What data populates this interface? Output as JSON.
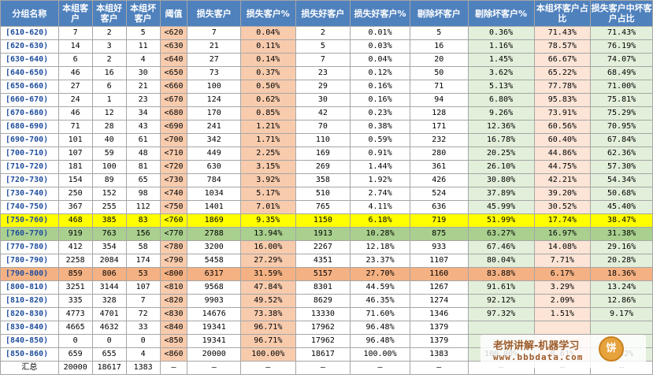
{
  "headers": [
    "分组名称",
    "本组客户",
    "本组好客户",
    "本组坏客户",
    "阈值",
    "损失客户",
    "损失客户%",
    "损失好客户",
    "损失好客户%",
    "剔除坏客户",
    "剔除坏客户%",
    "本组坏客户占比",
    "损失客户中坏客户占比"
  ],
  "rows": [
    [
      "[610-620)",
      "7",
      "2",
      "5",
      "<620",
      "7",
      "0.04%",
      "2",
      "0.01%",
      "5",
      "0.36%",
      "71.43%",
      "71.43%"
    ],
    [
      "[620-630)",
      "14",
      "3",
      "11",
      "<630",
      "21",
      "0.11%",
      "5",
      "0.03%",
      "16",
      "1.16%",
      "78.57%",
      "76.19%"
    ],
    [
      "[630-640)",
      "6",
      "2",
      "4",
      "<640",
      "27",
      "0.14%",
      "7",
      "0.04%",
      "20",
      "1.45%",
      "66.67%",
      "74.07%"
    ],
    [
      "[640-650)",
      "46",
      "16",
      "30",
      "<650",
      "73",
      "0.37%",
      "23",
      "0.12%",
      "50",
      "3.62%",
      "65.22%",
      "68.49%"
    ],
    [
      "[650-660)",
      "27",
      "6",
      "21",
      "<660",
      "100",
      "0.50%",
      "29",
      "0.16%",
      "71",
      "5.13%",
      "77.78%",
      "71.00%"
    ],
    [
      "[660-670)",
      "24",
      "1",
      "23",
      "<670",
      "124",
      "0.62%",
      "30",
      "0.16%",
      "94",
      "6.80%",
      "95.83%",
      "75.81%"
    ],
    [
      "[670-680)",
      "46",
      "12",
      "34",
      "<680",
      "170",
      "0.85%",
      "42",
      "0.23%",
      "128",
      "9.26%",
      "73.91%",
      "75.29%"
    ],
    [
      "[680-690)",
      "71",
      "28",
      "43",
      "<690",
      "241",
      "1.21%",
      "70",
      "0.38%",
      "171",
      "12.36%",
      "60.56%",
      "70.95%"
    ],
    [
      "[690-700)",
      "101",
      "40",
      "61",
      "<700",
      "342",
      "1.71%",
      "110",
      "0.59%",
      "232",
      "16.78%",
      "60.40%",
      "67.84%"
    ],
    [
      "[700-710)",
      "107",
      "59",
      "48",
      "<710",
      "449",
      "2.25%",
      "169",
      "0.91%",
      "280",
      "20.25%",
      "44.86%",
      "62.36%"
    ],
    [
      "[710-720)",
      "181",
      "100",
      "81",
      "<720",
      "630",
      "3.15%",
      "269",
      "1.44%",
      "361",
      "26.10%",
      "44.75%",
      "57.30%"
    ],
    [
      "[720-730)",
      "154",
      "89",
      "65",
      "<730",
      "784",
      "3.92%",
      "358",
      "1.92%",
      "426",
      "30.80%",
      "42.21%",
      "54.34%"
    ],
    [
      "[730-740)",
      "250",
      "152",
      "98",
      "<740",
      "1034",
      "5.17%",
      "510",
      "2.74%",
      "524",
      "37.89%",
      "39.20%",
      "50.68%"
    ],
    [
      "[740-750)",
      "367",
      "255",
      "112",
      "<750",
      "1401",
      "7.01%",
      "765",
      "4.11%",
      "636",
      "45.99%",
      "30.52%",
      "45.40%"
    ],
    [
      "[750-760)",
      "468",
      "385",
      "83",
      "<760",
      "1869",
      "9.35%",
      "1150",
      "6.18%",
      "719",
      "51.99%",
      "17.74%",
      "38.47%"
    ],
    [
      "[760-770)",
      "919",
      "763",
      "156",
      "<770",
      "2788",
      "13.94%",
      "1913",
      "10.28%",
      "875",
      "63.27%",
      "16.97%",
      "31.38%"
    ],
    [
      "[770-780)",
      "412",
      "354",
      "58",
      "<780",
      "3200",
      "16.00%",
      "2267",
      "12.18%",
      "933",
      "67.46%",
      "14.08%",
      "29.16%"
    ],
    [
      "[780-790)",
      "2258",
      "2084",
      "174",
      "<790",
      "5458",
      "27.29%",
      "4351",
      "23.37%",
      "1107",
      "80.04%",
      "7.71%",
      "20.28%"
    ],
    [
      "[790-800)",
      "859",
      "806",
      "53",
      "<800",
      "6317",
      "31.59%",
      "5157",
      "27.70%",
      "1160",
      "83.88%",
      "6.17%",
      "18.36%"
    ],
    [
      "[800-810)",
      "3251",
      "3144",
      "107",
      "<810",
      "9568",
      "47.84%",
      "8301",
      "44.59%",
      "1267",
      "91.61%",
      "3.29%",
      "13.24%"
    ],
    [
      "[810-820)",
      "335",
      "328",
      "7",
      "<820",
      "9903",
      "49.52%",
      "8629",
      "46.35%",
      "1274",
      "92.12%",
      "2.09%",
      "12.86%"
    ],
    [
      "[820-830)",
      "4773",
      "4701",
      "72",
      "<830",
      "14676",
      "73.38%",
      "13330",
      "71.60%",
      "1346",
      "97.32%",
      "1.51%",
      "9.17%"
    ],
    [
      "[830-840)",
      "4665",
      "4632",
      "33",
      "<840",
      "19341",
      "96.71%",
      "17962",
      "96.48%",
      "1379",
      "",
      "",
      ""
    ],
    [
      "[840-850)",
      "0",
      "0",
      "0",
      "<850",
      "19341",
      "96.71%",
      "17962",
      "96.48%",
      "1379",
      "",
      "",
      ""
    ],
    [
      "[850-860)",
      "659",
      "655",
      "4",
      "<860",
      "20000",
      "100.00%",
      "18617",
      "100.00%",
      "1383",
      "100.00%",
      "0.61%",
      "6.92%"
    ]
  ],
  "total": [
    "汇总",
    "20000",
    "18617",
    "1383",
    "–",
    "–",
    "–",
    "–",
    "–",
    "–",
    "–",
    "–",
    "–"
  ],
  "highlight": {
    "yellow_row": 14,
    "green_row": 15,
    "orange_row": 18
  },
  "watermark": {
    "title": "老饼讲解-机器学习",
    "url": "www.bbbdata.com",
    "logo": "饼"
  }
}
